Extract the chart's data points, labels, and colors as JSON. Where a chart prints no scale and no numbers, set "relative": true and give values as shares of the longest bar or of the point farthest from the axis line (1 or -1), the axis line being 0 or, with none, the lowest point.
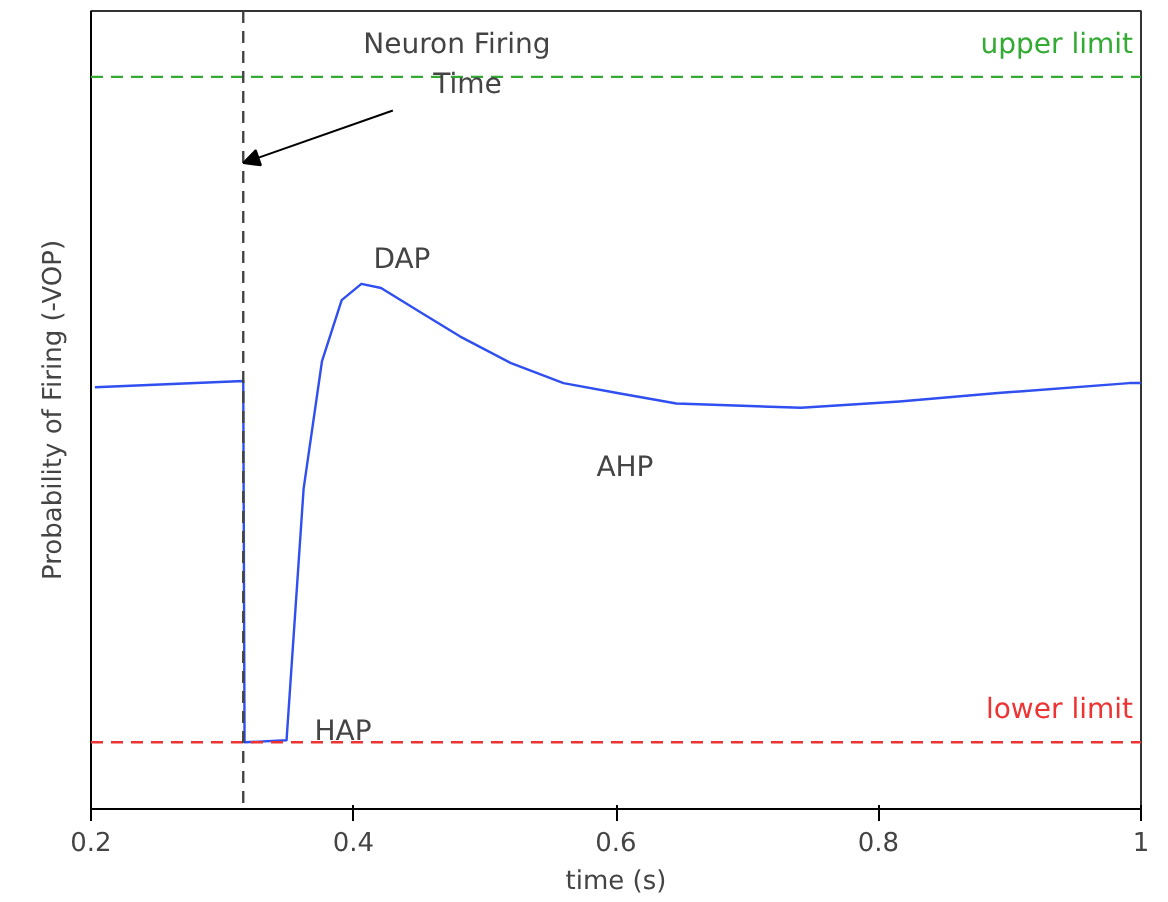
{
  "chart_data": {
    "type": "line",
    "relative": true,
    "xlabel": "time (s)",
    "ylabel": "Probability of Firing (-VOP)",
    "x": [
      0.203,
      0.316,
      0.317,
      0.349,
      0.362,
      0.376,
      0.391,
      0.406,
      0.421,
      0.451,
      0.481,
      0.52,
      0.56,
      0.601,
      0.646,
      0.741,
      0.816,
      0.891,
      0.991,
      1.0
    ],
    "series": [
      {
        "color": "#2f4ff0",
        "values": [
          0.803,
          0.815,
          0.127,
          0.131,
          0.61,
          0.853,
          0.969,
          1.0,
          0.992,
          0.946,
          0.9,
          0.849,
          0.811,
          0.792,
          0.772,
          0.764,
          0.776,
          0.792,
          0.811,
          0.811
        ]
      }
    ],
    "xlim": [
      0.2,
      1
    ],
    "xticks": [
      0.2,
      0.4,
      0.6,
      0.8,
      1
    ],
    "tick_labels": "x",
    "grid": false,
    "marker": "none",
    "line_style": "solid",
    "ref_lines": [
      {
        "axis": "y",
        "value": 1.394,
        "label": "upper limit",
        "color": "#33aa33",
        "line_style": "dashed"
      },
      {
        "axis": "y",
        "value": 0.127,
        "label": "lower limit",
        "color": "#ee3333",
        "line_style": "dashed"
      },
      {
        "axis": "x",
        "value": 0.316,
        "label": null,
        "color": "#444444",
        "line_style": "dashed"
      }
    ],
    "annotations": [
      {
        "text": "Neuron Firing Time",
        "x": 0.316,
        "y": 1.23
      },
      {
        "text": "DAP",
        "x": 0.406,
        "y": 1.0
      },
      {
        "text": "HAP",
        "x": 0.349,
        "y": 0.131
      },
      {
        "text": "AHP",
        "x": 0.646,
        "y": 0.772
      }
    ]
  }
}
